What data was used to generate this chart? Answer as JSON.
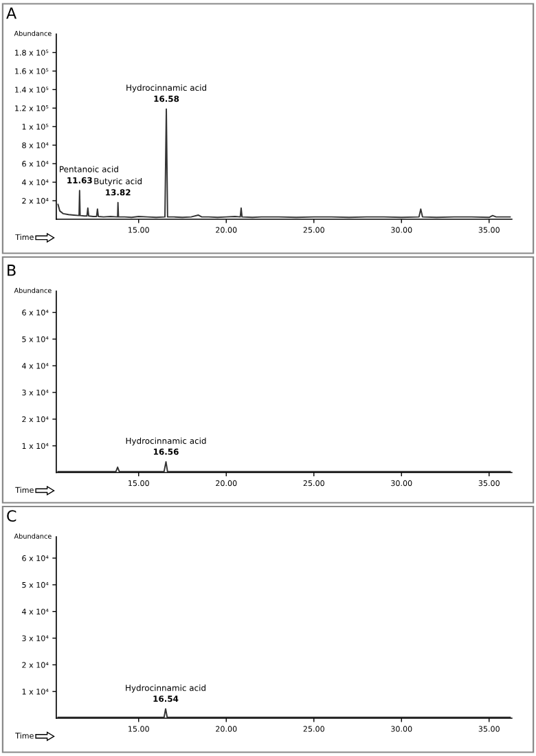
{
  "chart_data": [
    {
      "type": "line",
      "title": "A",
      "xlabel": "Time",
      "ylabel": "Abundance",
      "xlim": [
        10.3,
        36.3
      ],
      "ylim": [
        0,
        200000
      ],
      "xticks": [
        {
          "value": 15,
          "label": "15.00"
        },
        {
          "value": 20,
          "label": "20.00"
        },
        {
          "value": 25,
          "label": "25.00"
        },
        {
          "value": 30,
          "label": "30.00"
        },
        {
          "value": 35,
          "label": "35.00"
        }
      ],
      "yticks": [
        {
          "value": 20000,
          "label": "2 x 10⁴"
        },
        {
          "value": 40000,
          "label": "4 x 10⁴"
        },
        {
          "value": 60000,
          "label": "6 x 10⁴"
        },
        {
          "value": 80000,
          "label": "8 x 10⁴"
        },
        {
          "value": 100000,
          "label": "1 x 10⁵"
        },
        {
          "value": 120000,
          "label": "1.2 x 10⁵"
        },
        {
          "value": 140000,
          "label": "1.4 x 10⁵"
        },
        {
          "value": 160000,
          "label": "1.6 x 10⁵"
        },
        {
          "value": 180000,
          "label": "1.8 x 10⁵"
        }
      ],
      "x": [
        10.4,
        10.5,
        10.7,
        11.0,
        11.3,
        11.6,
        11.63,
        11.66,
        11.9,
        12.05,
        12.1,
        12.15,
        12.4,
        12.6,
        12.65,
        12.7,
        13.0,
        13.4,
        13.8,
        13.82,
        13.85,
        14.2,
        14.6,
        15.0,
        15.5,
        16.0,
        16.5,
        16.58,
        16.65,
        17.0,
        17.5,
        18.0,
        18.4,
        18.6,
        19.0,
        19.5,
        20.0,
        20.5,
        20.8,
        20.85,
        20.9,
        21.5,
        22.0,
        23.0,
        24.0,
        25.0,
        26.0,
        27.0,
        28.0,
        29.0,
        30.0,
        31.0,
        31.1,
        31.2,
        32.0,
        33.0,
        34.0,
        35.0,
        35.2,
        35.4,
        36.2
      ],
      "series": [
        {
          "color": "#333333",
          "values": [
            16000,
            9000,
            6000,
            5000,
            4500,
            4000,
            31000,
            4000,
            3500,
            3500,
            12000,
            3500,
            3000,
            3000,
            11000,
            3000,
            2500,
            3000,
            2500,
            18000,
            2500,
            2500,
            2000,
            3000,
            2500,
            2000,
            2500,
            119000,
            2500,
            2500,
            2000,
            2500,
            4500,
            2500,
            2500,
            2000,
            2500,
            3000,
            2500,
            12000,
            2500,
            2000,
            2500,
            2500,
            2000,
            2500,
            2500,
            2000,
            2500,
            2500,
            2000,
            2500,
            11000,
            2500,
            2000,
            2500,
            2500,
            2000,
            4000,
            2500,
            2500
          ]
        }
      ],
      "annotations": [
        {
          "text": "Pentanoic acid",
          "x": 11.63,
          "y": 31000
        },
        {
          "text": "11.63",
          "x": 11.63,
          "y": 31000
        },
        {
          "text": "Butyric acid",
          "x": 13.82,
          "y": 18000
        },
        {
          "text": "13.82",
          "x": 13.82,
          "y": 18000
        },
        {
          "text": "Hydrocinnamic acid",
          "x": 16.58,
          "y": 119000
        },
        {
          "text": "16.58",
          "x": 16.58,
          "y": 119000
        }
      ]
    },
    {
      "type": "line",
      "title": "B",
      "xlabel": "Time",
      "ylabel": "Abundance",
      "xlim": [
        10.3,
        36.3
      ],
      "ylim": [
        0,
        68000
      ],
      "xticks": [
        {
          "value": 15,
          "label": "15.00"
        },
        {
          "value": 20,
          "label": "20.00"
        },
        {
          "value": 25,
          "label": "25.00"
        },
        {
          "value": 30,
          "label": "30.00"
        },
        {
          "value": 35,
          "label": "35.00"
        }
      ],
      "yticks": [
        {
          "value": 10000,
          "label": "1 x 10⁴"
        },
        {
          "value": 20000,
          "label": "2 x 10⁴"
        },
        {
          "value": 30000,
          "label": "3 x 10⁴"
        },
        {
          "value": 40000,
          "label": "4 x 10⁴"
        },
        {
          "value": 50000,
          "label": "5 x 10⁴"
        },
        {
          "value": 60000,
          "label": "6 x 10⁴"
        }
      ],
      "x": [
        10.4,
        12.0,
        13.7,
        13.8,
        13.9,
        15.0,
        16.45,
        16.56,
        16.65,
        18.0,
        20.0,
        22.0,
        25.0,
        28.0,
        30.0,
        33.0,
        36.2
      ],
      "series": [
        {
          "color": "#333333",
          "values": [
            300,
            300,
            300,
            2000,
            300,
            300,
            300,
            4000,
            300,
            300,
            300,
            300,
            300,
            300,
            300,
            300,
            300
          ]
        }
      ],
      "annotations": [
        {
          "text": "Hydrocinnamic acid",
          "x": 16.56,
          "y": 4000
        },
        {
          "text": "16.56",
          "x": 16.56,
          "y": 4000
        }
      ]
    },
    {
      "type": "line",
      "title": "C",
      "xlabel": "Time",
      "ylabel": "Abundance",
      "xlim": [
        10.3,
        36.3
      ],
      "ylim": [
        0,
        68000
      ],
      "xticks": [
        {
          "value": 15,
          "label": "15.00"
        },
        {
          "value": 20,
          "label": "20.00"
        },
        {
          "value": 25,
          "label": "25.00"
        },
        {
          "value": 30,
          "label": "30.00"
        },
        {
          "value": 35,
          "label": "35.00"
        }
      ],
      "yticks": [
        {
          "value": 10000,
          "label": "1 x 10⁴"
        },
        {
          "value": 20000,
          "label": "2 x 10⁴"
        },
        {
          "value": 30000,
          "label": "3 x 10⁴"
        },
        {
          "value": 40000,
          "label": "4 x 10⁴"
        },
        {
          "value": 50000,
          "label": "5 x 10⁴"
        },
        {
          "value": 60000,
          "label": "6 x 10⁴"
        }
      ],
      "x": [
        10.4,
        12.0,
        14.0,
        15.5,
        16.45,
        16.54,
        16.63,
        18.0,
        20.0,
        22.0,
        25.0,
        28.0,
        30.0,
        33.0,
        36.2
      ],
      "series": [
        {
          "color": "#333333",
          "values": [
            300,
            300,
            300,
            300,
            300,
            3500,
            300,
            300,
            300,
            300,
            300,
            300,
            300,
            300,
            300
          ]
        }
      ],
      "annotations": [
        {
          "text": "Hydrocinnamic acid",
          "x": 16.54,
          "y": 3500
        },
        {
          "text": "16.54",
          "x": 16.54,
          "y": 3500
        }
      ]
    }
  ]
}
